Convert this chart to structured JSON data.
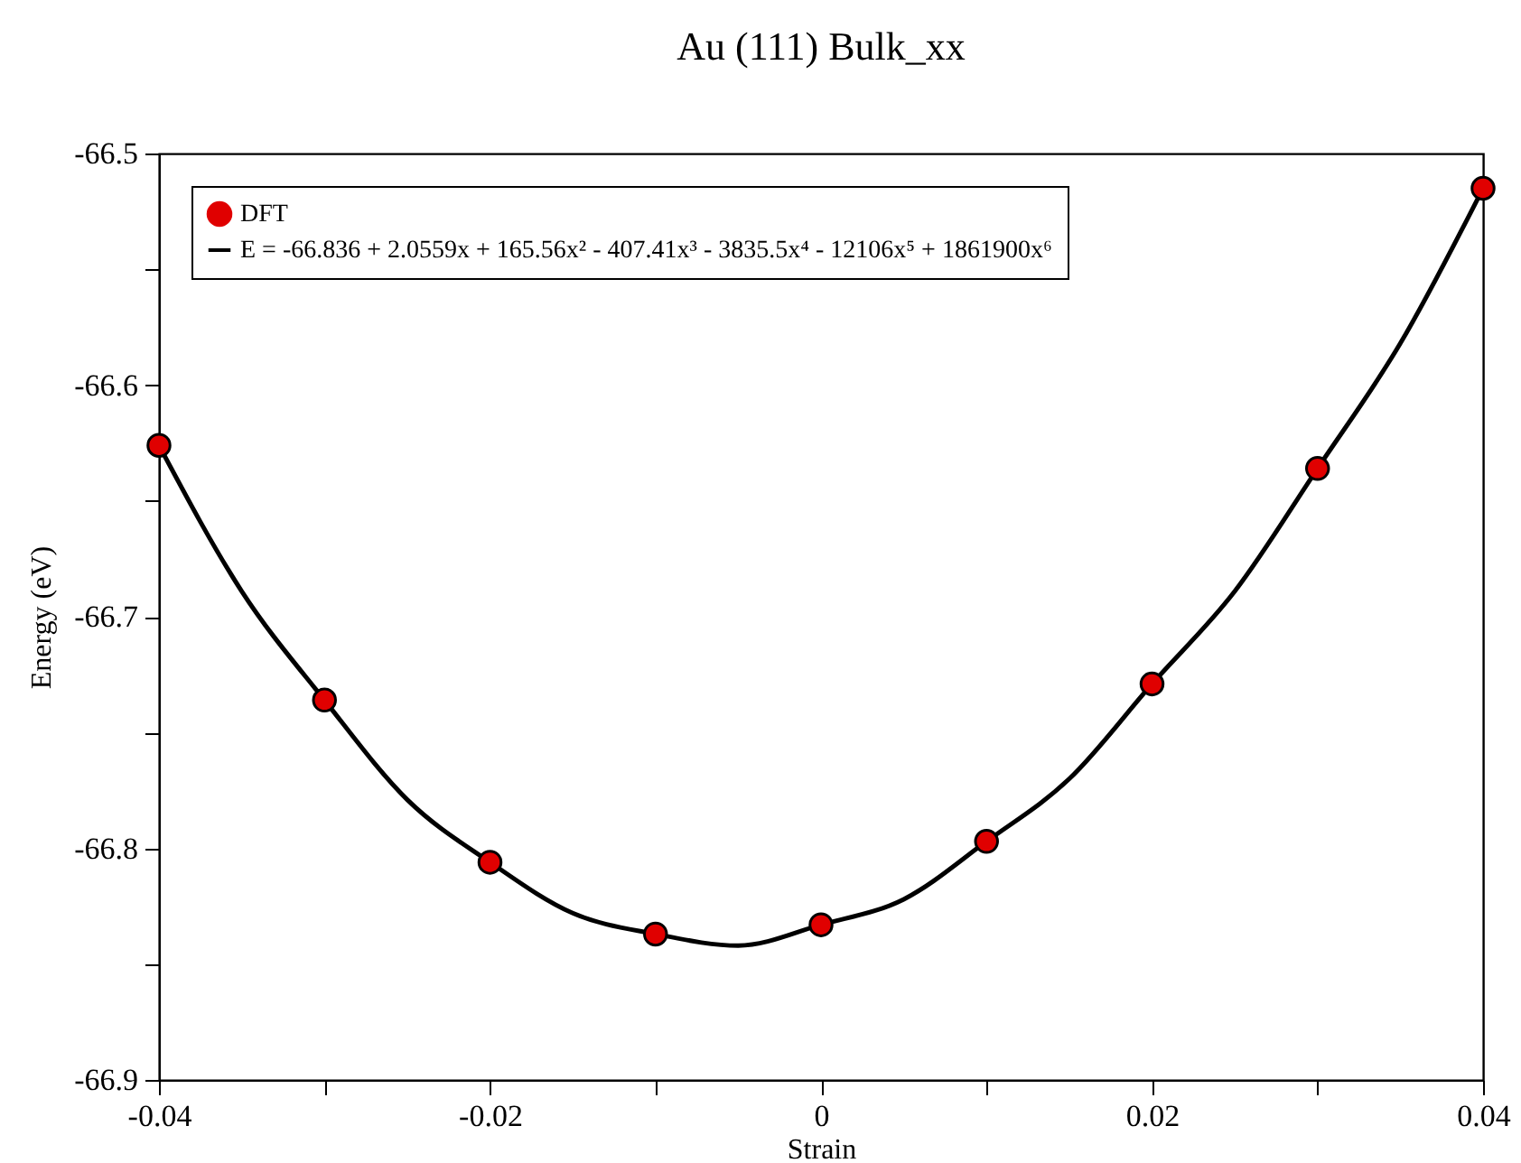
{
  "chart_data": {
    "type": "scatter",
    "title": "Au (111) Bulk_xx",
    "xlabel": "Strain",
    "ylabel": "Energy (eV)",
    "xlim": [
      -0.04,
      0.04
    ],
    "xticks": [
      -0.04,
      {
        "value": -0.03,
        "label": null
      },
      -0.02,
      {
        "value": -0.01,
        "label": null
      },
      0,
      {
        "value": 0.01,
        "label": null
      },
      0.02,
      {
        "value": 0.03,
        "label": null
      },
      0.04
    ],
    "ylim": [
      -66.9,
      -66.5
    ],
    "yticks": [
      -66.9,
      {
        "value": -66.85,
        "label": null
      },
      -66.8,
      {
        "value": -66.75,
        "label": null
      },
      -66.7,
      {
        "value": -66.65,
        "label": null
      },
      -66.6,
      {
        "value": -66.55,
        "label": null
      },
      -66.5
    ],
    "grid": false,
    "legend": "top left",
    "series": [
      {
        "name": "DFT",
        "marker": "circle",
        "color": "#e00000",
        "x": [
          -0.04,
          -0.03,
          -0.02,
          -0.01,
          0,
          0.01,
          0.02,
          0.03,
          0.04
        ],
        "values": [
          -66.626,
          -66.736,
          -66.806,
          -66.837,
          -66.833,
          -66.797,
          -66.729,
          -66.636,
          -66.515
        ]
      },
      {
        "name": "E = -66.836 + 2.0559x + 165.56x² - 407.41x³ - 3835.5x⁴ - 12106x⁵ + 1861900x⁶",
        "type": "line",
        "color": "#000000",
        "line_style": "solid",
        "x": [
          -0.04,
          -0.035,
          -0.03,
          -0.025,
          -0.02,
          -0.015,
          -0.01,
          -0.005,
          0,
          0.005,
          0.01,
          0.015,
          0.02,
          0.025,
          0.03,
          0.035,
          0.04
        ],
        "values": [
          -66.626,
          -66.689,
          -66.736,
          -66.779,
          -66.806,
          -66.828,
          -66.837,
          -66.842,
          -66.833,
          -66.822,
          -66.797,
          -66.77,
          -66.729,
          -66.689,
          -66.636,
          -66.582,
          -66.515
        ]
      }
    ]
  }
}
